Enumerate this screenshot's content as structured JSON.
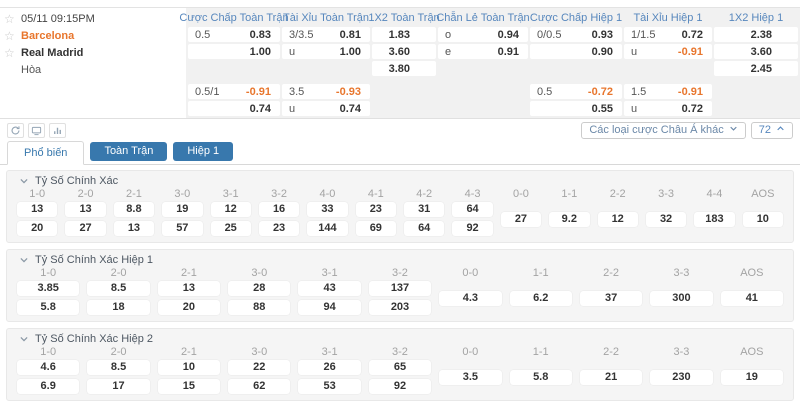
{
  "match": {
    "time": "05/11 09:15PM",
    "home": "Barcelona",
    "away": "Real Madrid",
    "draw": "Hòa",
    "markets": [
      {
        "name": "Cược Chấp Toàn Trận",
        "type": "hdp",
        "cells": [
          [
            "0.5",
            "0.83"
          ],
          [
            "",
            "1.00"
          ],
          null,
          [
            "0.5/1",
            "-0.91"
          ],
          [
            "",
            "0.74"
          ]
        ]
      },
      {
        "name": "Tài Xỉu Toàn Trận",
        "type": "ou",
        "cells": [
          [
            "3/3.5",
            "0.81"
          ],
          [
            "u",
            "1.00"
          ],
          null,
          [
            "3.5",
            "-0.93"
          ],
          [
            "u",
            "0.74"
          ]
        ]
      },
      {
        "name": "1X2 Toàn Trận",
        "type": "1x2",
        "cells": [
          [
            "",
            "1.83"
          ],
          [
            "",
            "3.60"
          ],
          [
            "",
            "3.80"
          ],
          null,
          null
        ]
      },
      {
        "name": "Chẵn Lẻ Toàn Trận",
        "type": "oe",
        "cells": [
          [
            "o",
            "0.94"
          ],
          [
            "e",
            "0.91"
          ],
          null,
          null,
          null
        ]
      },
      {
        "name": "Cược Chấp Hiệp 1",
        "type": "hdp",
        "cells": [
          [
            "0/0.5",
            "0.93"
          ],
          [
            "",
            "0.90"
          ],
          null,
          [
            "0.5",
            "-0.72"
          ],
          [
            "",
            "0.55"
          ]
        ]
      },
      {
        "name": "Tài Xỉu Hiệp 1",
        "type": "ou",
        "cells": [
          [
            "1/1.5",
            "0.72"
          ],
          [
            "u",
            "-0.91"
          ],
          null,
          [
            "1.5",
            "-0.91"
          ],
          [
            "u",
            "0.72"
          ]
        ]
      },
      {
        "name": "1X2 Hiệp 1",
        "type": "1x2",
        "cells": [
          [
            "",
            "2.38"
          ],
          [
            "",
            "3.60"
          ],
          [
            "",
            "2.45"
          ],
          null,
          null
        ]
      }
    ]
  },
  "toolbar": {
    "icons": [
      "refresh-icon",
      "tv-icon",
      "stats-icon"
    ],
    "dropdown_label": "Các loại cược Châu Á khác",
    "market_count": "72"
  },
  "tabs": [
    {
      "label": "Phổ biến",
      "active": true
    },
    {
      "label": "Toàn Trận",
      "active": false
    },
    {
      "label": "Hiệp 1",
      "active": false
    }
  ],
  "sections": [
    {
      "title": "Tỷ Số Chính Xác",
      "columns": [
        {
          "score": "1-0",
          "values": [
            "13",
            "20"
          ]
        },
        {
          "score": "2-0",
          "values": [
            "13",
            "27"
          ]
        },
        {
          "score": "2-1",
          "values": [
            "8.8",
            "13"
          ]
        },
        {
          "score": "3-0",
          "values": [
            "19",
            "57"
          ]
        },
        {
          "score": "3-1",
          "values": [
            "12",
            "25"
          ]
        },
        {
          "score": "3-2",
          "values": [
            "16",
            "23"
          ]
        },
        {
          "score": "4-0",
          "values": [
            "33",
            "144"
          ]
        },
        {
          "score": "4-1",
          "values": [
            "23",
            "69"
          ]
        },
        {
          "score": "4-2",
          "values": [
            "31",
            "64"
          ]
        },
        {
          "score": "4-3",
          "values": [
            "64",
            "92"
          ]
        },
        {
          "score": "0-0",
          "values": [
            "27"
          ]
        },
        {
          "score": "1-1",
          "values": [
            "9.2"
          ]
        },
        {
          "score": "2-2",
          "values": [
            "12"
          ]
        },
        {
          "score": "3-3",
          "values": [
            "32"
          ]
        },
        {
          "score": "4-4",
          "values": [
            "183"
          ]
        },
        {
          "score": "AOS",
          "values": [
            "10"
          ]
        }
      ]
    },
    {
      "title": "Tỷ Số Chính Xác Hiệp 1",
      "columns": [
        {
          "score": "1-0",
          "values": [
            "3.85",
            "5.8"
          ]
        },
        {
          "score": "2-0",
          "values": [
            "8.5",
            "18"
          ]
        },
        {
          "score": "2-1",
          "values": [
            "13",
            "20"
          ]
        },
        {
          "score": "3-0",
          "values": [
            "28",
            "88"
          ]
        },
        {
          "score": "3-1",
          "values": [
            "43",
            "94"
          ]
        },
        {
          "score": "3-2",
          "values": [
            "137",
            "203"
          ]
        },
        {
          "score": "0-0",
          "values": [
            "4.3"
          ]
        },
        {
          "score": "1-1",
          "values": [
            "6.2"
          ]
        },
        {
          "score": "2-2",
          "values": [
            "37"
          ]
        },
        {
          "score": "3-3",
          "values": [
            "300"
          ]
        },
        {
          "score": "AOS",
          "values": [
            "41"
          ]
        }
      ]
    },
    {
      "title": "Tỷ Số Chính Xác Hiệp 2",
      "columns": [
        {
          "score": "1-0",
          "values": [
            "4.6",
            "6.9"
          ]
        },
        {
          "score": "2-0",
          "values": [
            "8.5",
            "17"
          ]
        },
        {
          "score": "2-1",
          "values": [
            "10",
            "15"
          ]
        },
        {
          "score": "3-0",
          "values": [
            "22",
            "62"
          ]
        },
        {
          "score": "3-1",
          "values": [
            "26",
            "53"
          ]
        },
        {
          "score": "3-2",
          "values": [
            "65",
            "92"
          ]
        },
        {
          "score": "0-0",
          "values": [
            "3.5"
          ]
        },
        {
          "score": "1-1",
          "values": [
            "5.8"
          ]
        },
        {
          "score": "2-2",
          "values": [
            "21"
          ]
        },
        {
          "score": "3-3",
          "values": [
            "230"
          ]
        },
        {
          "score": "AOS",
          "values": [
            "19"
          ]
        }
      ]
    }
  ],
  "colors": {
    "header_blue": "#5787bd",
    "tab_blue": "#3878ad",
    "negative_orange": "#e8762d",
    "home_team_orange": "#e8762d"
  }
}
